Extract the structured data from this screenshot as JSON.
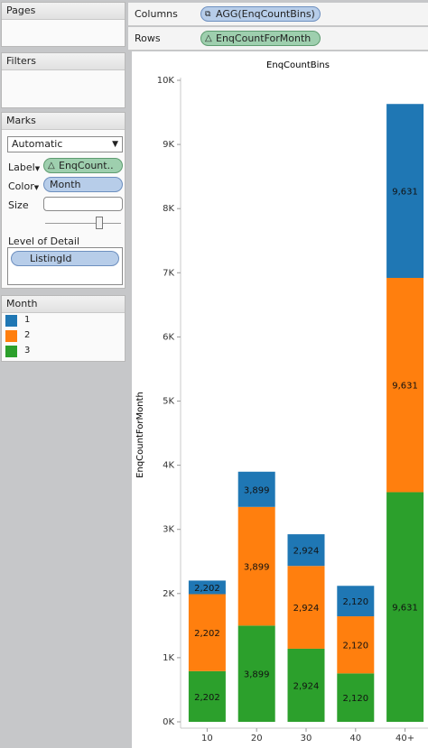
{
  "pages": {
    "title": "Pages"
  },
  "filters": {
    "title": "Filters"
  },
  "marks": {
    "title": "Marks",
    "mark_type": "Automatic",
    "label_label": "Label",
    "label_pill": "EnqCount..",
    "color_label": "Color",
    "color_pill": "Month",
    "size_label": "Size",
    "size_slider_level": 0.7,
    "lod_label": "Level of Detail",
    "lod_pill": "ListingId"
  },
  "legend": {
    "title": "Month",
    "items": [
      {
        "label": "1",
        "color": "#1f77b4"
      },
      {
        "label": "2",
        "color": "#ff7f0e"
      },
      {
        "label": "3",
        "color": "#2ca02c"
      }
    ]
  },
  "shelves": {
    "columns_label": "Columns",
    "columns_pill": "AGG(EnqCountBins)",
    "rows_label": "Rows",
    "rows_pill": "EnqCountForMonth"
  },
  "chart_data": {
    "type": "bar",
    "stacked": true,
    "title": "EnqCountBins",
    "ylabel": "EnqCountForMonth",
    "xlabel": "",
    "categories": [
      "10",
      "20",
      "30",
      "40",
      "40+"
    ],
    "ylim": [
      0,
      10000
    ],
    "yticks": [
      "0K",
      "1K",
      "2K",
      "3K",
      "4K",
      "5K",
      "6K",
      "7K",
      "8K",
      "9K",
      "10K"
    ],
    "ytick_values": [
      0,
      1000,
      2000,
      3000,
      4000,
      5000,
      6000,
      7000,
      8000,
      9000,
      10000
    ],
    "series": [
      {
        "name": "3",
        "color": "#2ca02c",
        "values": [
          790,
          1500,
          1140,
          755,
          3580
        ],
        "labels": [
          "2,202",
          "3,899",
          "2,924",
          "2,120",
          "9,631"
        ]
      },
      {
        "name": "2",
        "color": "#ff7f0e",
        "values": [
          1200,
          1850,
          1290,
          890,
          3340
        ],
        "labels": [
          "2,202",
          "3,899",
          "2,924",
          "2,120",
          "9,631"
        ]
      },
      {
        "name": "1",
        "color": "#1f77b4",
        "values": [
          212,
          549,
          494,
          475,
          2711
        ],
        "labels": [
          "2,202",
          "3,899",
          "2,924",
          "2,120",
          "9,631"
        ]
      }
    ]
  }
}
